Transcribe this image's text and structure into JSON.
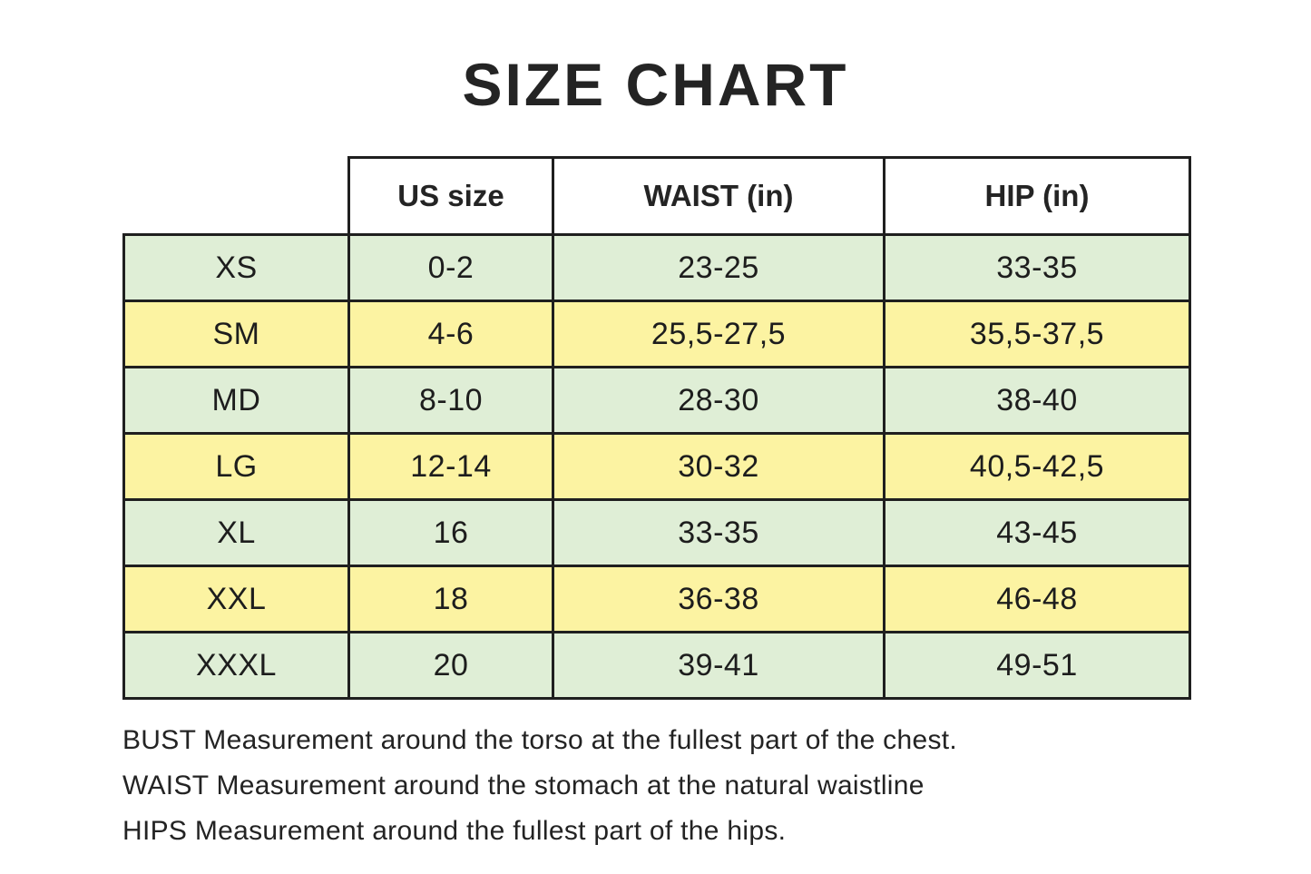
{
  "title": "SIZE CHART",
  "chart_data": {
    "type": "table",
    "title": "SIZE CHART",
    "columns": [
      "",
      "US size",
      "WAIST (in)",
      "HIP (in)"
    ],
    "rows": [
      [
        "XS",
        "0-2",
        "23-25",
        "33-35"
      ],
      [
        "SM",
        "4-6",
        "25,5-27,5",
        "35,5-37,5"
      ],
      [
        "MD",
        "8-10",
        "28-30",
        "38-40"
      ],
      [
        "LG",
        "12-14",
        "30-32",
        "40,5-42,5"
      ],
      [
        "XL",
        "16",
        "33-35",
        "43-45"
      ],
      [
        "XXL",
        "18",
        "36-38",
        "46-48"
      ],
      [
        "XXXL",
        "20",
        "39-41",
        "49-51"
      ]
    ],
    "layout_hints": {
      "row_stripe_pattern": [
        "green",
        "yellow",
        "green",
        "yellow",
        "green",
        "yellow",
        "green"
      ],
      "header_background": "white",
      "grid": "on"
    }
  },
  "notes": [
    "BUST Measurement around the torso at the fullest part of the chest.",
    "WAIST Measurement around the stomach at the natural waistline",
    "HIPS Measurement around the fullest part of the hips."
  ],
  "colors": {
    "row_green": "#dfeed6",
    "row_yellow": "#fcf3a2",
    "border_color": "#1f1f1f",
    "text_color": "#1d1d1d",
    "header_bg": "#ffffff",
    "page_bg": "#ffffff"
  }
}
